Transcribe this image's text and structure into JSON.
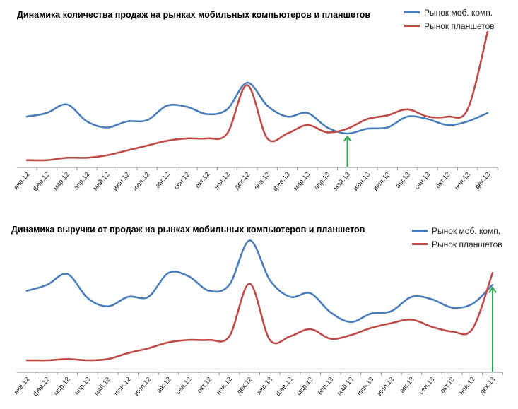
{
  "colors": {
    "blue": "#4a7ebb",
    "red": "#be4b48",
    "arrow": "#2ea44f",
    "axis": "#8c8c8c"
  },
  "chart_data": [
    {
      "type": "line",
      "title": "Динамика количества продаж на рынках мобильных компьютеров и планшетов",
      "categories": [
        "янв.12",
        "фев.12",
        "мар.12",
        "апр.12",
        "май.12",
        "июн.12",
        "июл.12",
        "авг.12",
        "сен.12",
        "окт.12",
        "ноя.12",
        "дек.12",
        "янв.13",
        "фев.13",
        "мар.13",
        "апр.13",
        "май.13",
        "июн.13",
        "июл.13",
        "авг.13",
        "сен.13",
        "окт.13",
        "ноя.13",
        "дек.13"
      ],
      "series": [
        {
          "name": "Рынок моб. комп.",
          "color": "#4a7ebb",
          "values": [
            42,
            45,
            52,
            38,
            33,
            38,
            39,
            51,
            50,
            44,
            48,
            70,
            51,
            42,
            45,
            33,
            28,
            32,
            33,
            42,
            40,
            35,
            38,
            45
          ]
        },
        {
          "name": "Рынок планшетов",
          "color": "#be4b48",
          "values": [
            6,
            6,
            8,
            8,
            10,
            14,
            18,
            22,
            24,
            24,
            28,
            68,
            24,
            28,
            35,
            29,
            32,
            40,
            43,
            48,
            42,
            42,
            48,
            112
          ]
        }
      ],
      "ylim": [
        0,
        115
      ],
      "annotation": {
        "type": "arrow",
        "category": "май.13",
        "direction": "up"
      }
    },
    {
      "type": "line",
      "title": "Динамика выручки от продаж на рынках мобильных компьютеров и планшетов",
      "categories": [
        "янв.12",
        "фев.12",
        "мар.12",
        "апр.12",
        "май.12",
        "июн.12",
        "июл.12",
        "авг.12",
        "сен.12",
        "окт.12",
        "ноя.12",
        "дек.12",
        "янв.13",
        "фев.13",
        "мар.13",
        "апр.13",
        "май.13",
        "июн.13",
        "июл.13",
        "авг.13",
        "сен.13",
        "окт.13",
        "ноя.13",
        "дек.13"
      ],
      "series": [
        {
          "name": "Рынок моб. комп.",
          "color": "#4a7ebb",
          "values": [
            68,
            73,
            82,
            62,
            55,
            63,
            63,
            83,
            80,
            68,
            73,
            110,
            77,
            63,
            66,
            50,
            42,
            49,
            51,
            63,
            61,
            54,
            57,
            73
          ]
        },
        {
          "name": "Рынок планшетов",
          "color": "#be4b48",
          "values": [
            10,
            10,
            11,
            10,
            11,
            16,
            20,
            25,
            27,
            27,
            30,
            74,
            27,
            30,
            36,
            28,
            31,
            37,
            41,
            44,
            38,
            34,
            36,
            83
          ]
        }
      ],
      "ylim": [
        0,
        115
      ],
      "annotation": {
        "type": "arrow",
        "category": "дек.13",
        "direction": "up"
      }
    }
  ]
}
